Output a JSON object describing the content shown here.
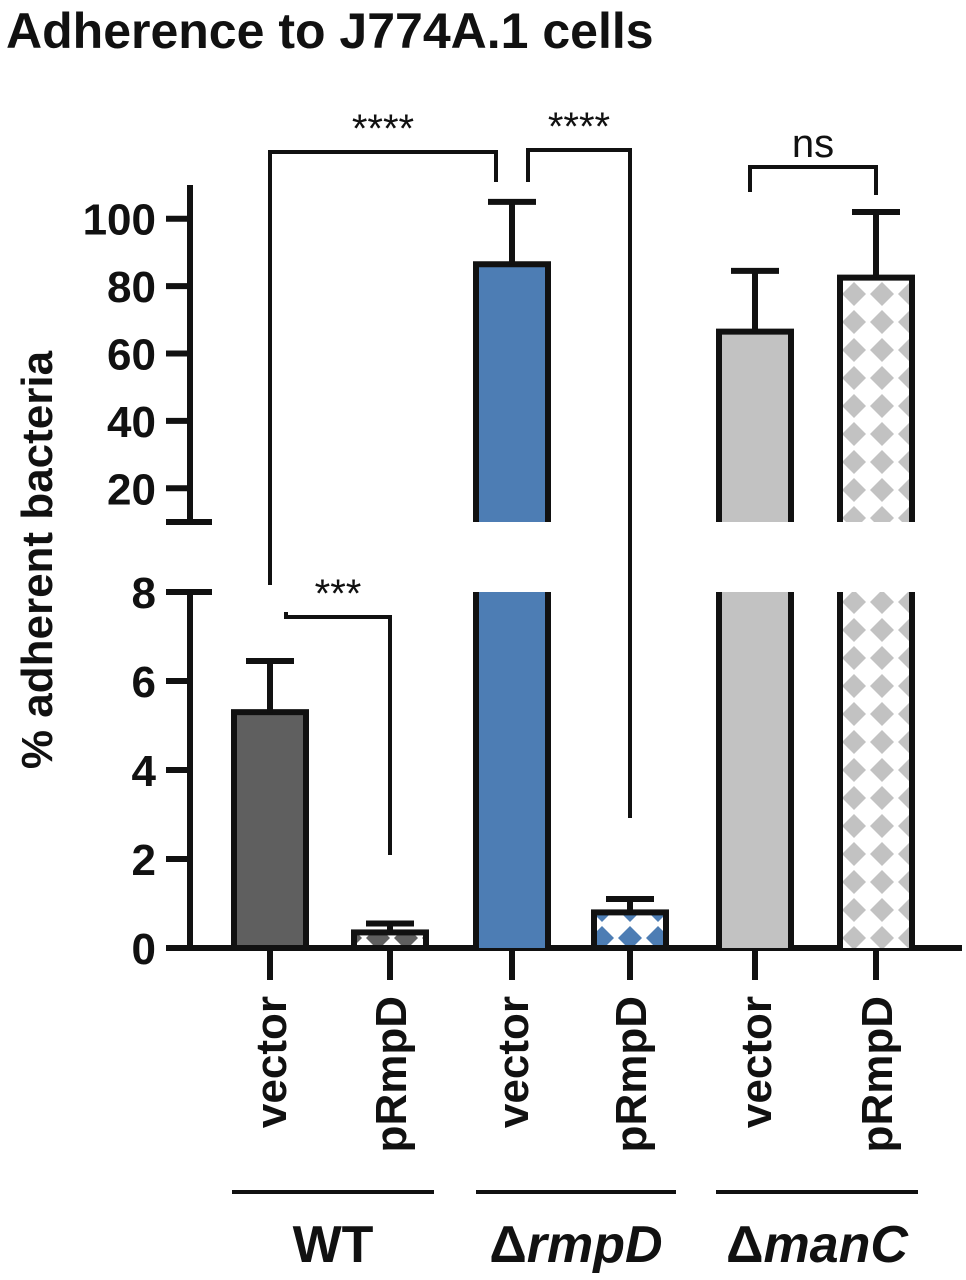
{
  "chart_data": {
    "type": "bar",
    "title": "Adherence to J774A.1 cells",
    "ylabel": "% adherent bacteria",
    "y_axis": {
      "break": true,
      "lower_range": [
        0,
        8
      ],
      "lower_ticks": [
        0,
        2,
        4,
        6,
        8
      ],
      "upper_range": [
        10,
        110
      ],
      "upper_ticks": [
        20,
        40,
        60,
        80,
        100
      ]
    },
    "categories": [
      "vector",
      "pRmpD",
      "vector",
      "pRmpD",
      "vector",
      "pRmpD"
    ],
    "groups": [
      {
        "delta": "",
        "name": "WT",
        "bars": [
          0,
          1
        ]
      },
      {
        "delta": "Δ",
        "name": "rmpD",
        "bars": [
          2,
          3
        ]
      },
      {
        "delta": "Δ",
        "name": "manC",
        "bars": [
          4,
          5
        ]
      }
    ],
    "values": [
      5.3,
      0.35,
      86.5,
      0.8,
      66.5,
      82.5
    ],
    "errors": [
      1.15,
      0.2,
      18.5,
      0.3,
      18,
      19.5
    ],
    "colors": [
      "#5f5f5f",
      "#5f5f5f",
      "#4d7db4",
      "#4d7db4",
      "#c2c2c2",
      "#c2c2c2"
    ],
    "patterns": [
      "solid",
      "diamond",
      "solid",
      "diamond",
      "solid",
      "diamond"
    ],
    "significance": [
      {
        "from": 0,
        "to": 1,
        "label": "***"
      },
      {
        "from": 0,
        "to": 2,
        "label": "****"
      },
      {
        "from": 2,
        "to": 3,
        "label": "****"
      },
      {
        "from": 4,
        "to": 5,
        "label": "ns"
      }
    ]
  }
}
